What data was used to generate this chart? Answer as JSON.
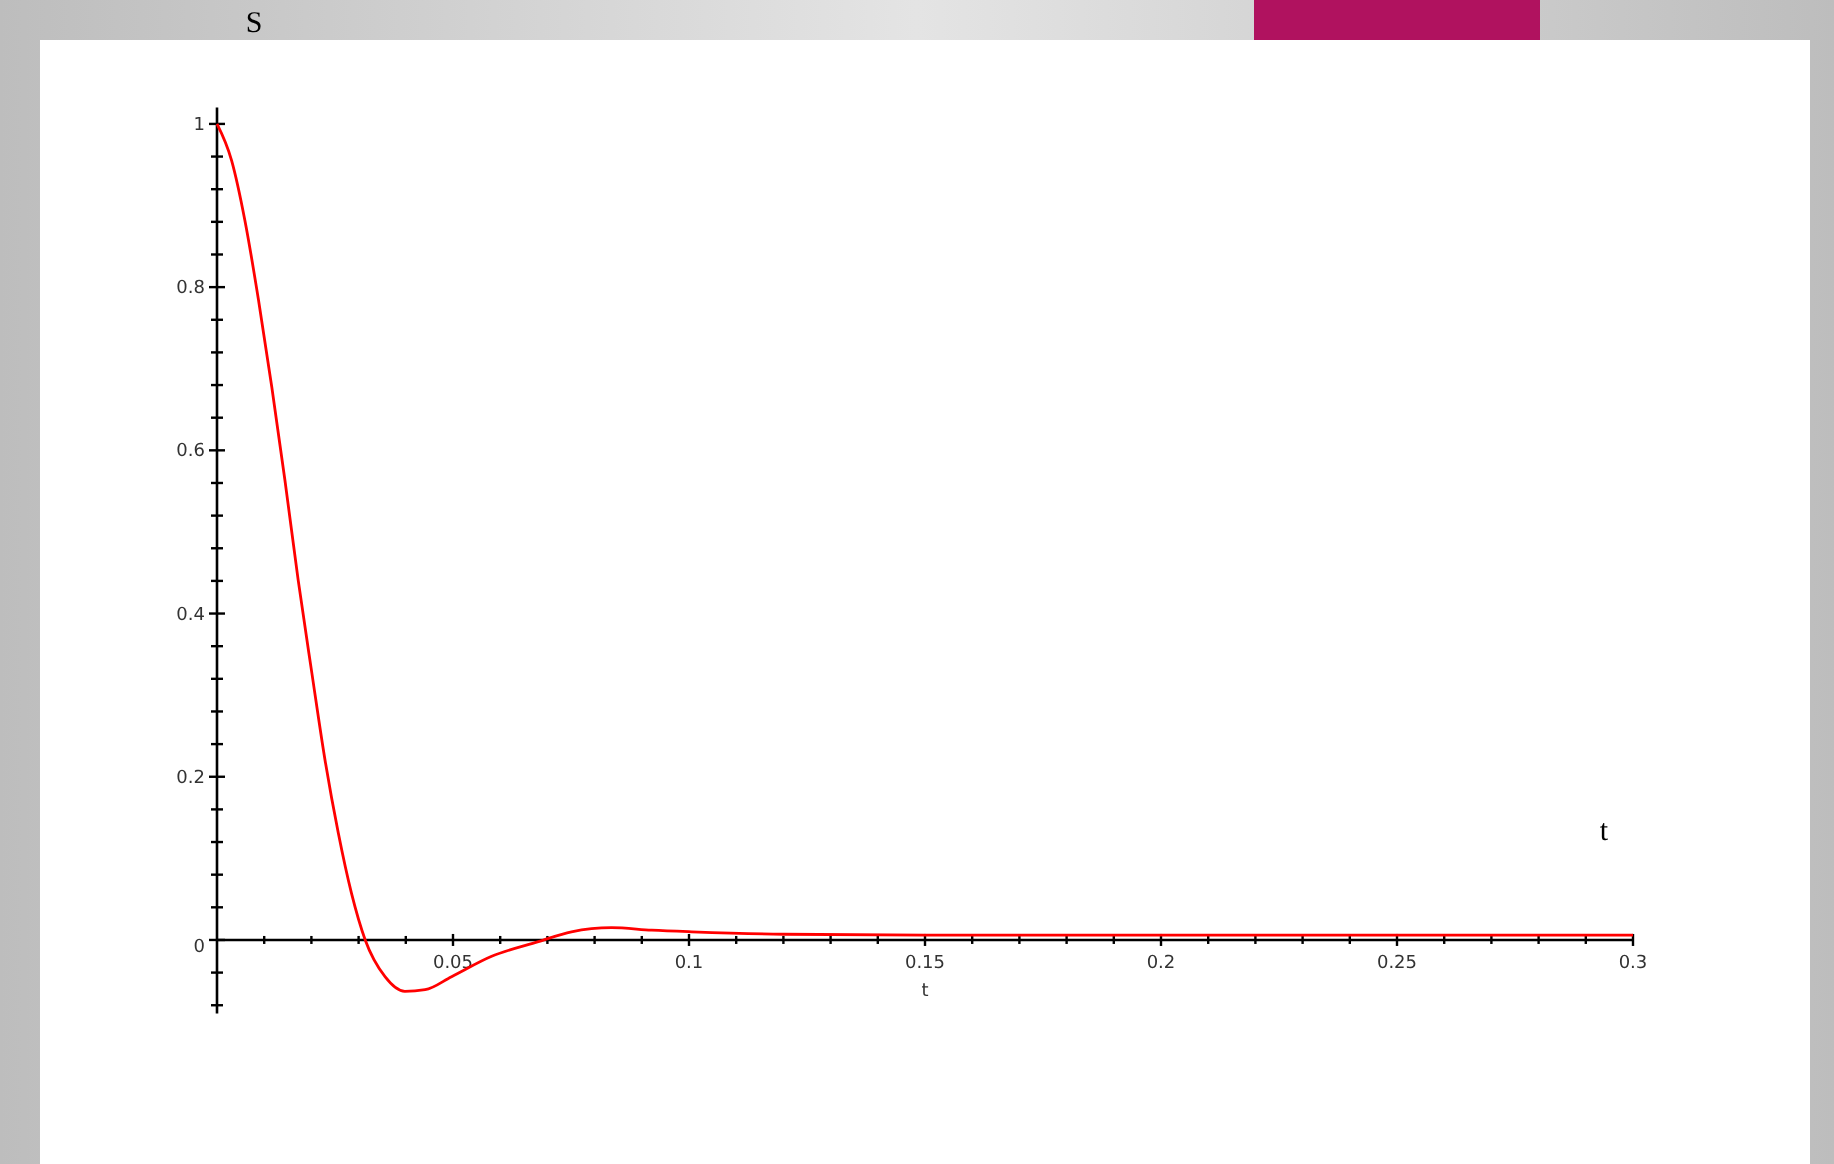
{
  "chart_data": {
    "type": "line",
    "ylabel": "S",
    "xlabel": "t",
    "annotations": [
      "t"
    ],
    "x": [
      0,
      0.0031,
      0.0059,
      0.0088,
      0.0116,
      0.0144,
      0.0172,
      0.0201,
      0.0229,
      0.0257,
      0.0285,
      0.0314,
      0.0356,
      0.0398,
      0.0441,
      0.0497,
      0.0582,
      0.0681,
      0.0751,
      0.0836,
      0.0921,
      0.1006,
      0.12,
      0.15,
      0.2,
      0.25,
      0.3
    ],
    "series": [
      {
        "color": "#ff0000",
        "values": [
          1,
          0.955,
          0.882,
          0.784,
          0.678,
          0.563,
          0.441,
          0.327,
          0.22,
          0.131,
          0.057,
          0,
          -0.045,
          -0.063,
          -0.061,
          -0.045,
          -0.02,
          -0.002,
          0.01,
          0.015,
          0.012,
          0.01,
          0.007,
          0.006,
          0.006,
          0.006,
          0.006
        ]
      }
    ],
    "xlim": [
      0,
      0.3
    ],
    "ylim": [
      -0.09,
      1.02
    ],
    "xticks": [
      {
        "value": 0.01,
        "label": null
      },
      {
        "value": 0.02,
        "label": null
      },
      {
        "value": 0.03,
        "label": null
      },
      {
        "value": 0.04,
        "label": null
      },
      0.05,
      {
        "value": 0.06,
        "label": null
      },
      {
        "value": 0.07,
        "label": null
      },
      {
        "value": 0.08,
        "label": null
      },
      {
        "value": 0.09,
        "label": null
      },
      0.1,
      {
        "value": 0.11,
        "label": null
      },
      {
        "value": 0.12,
        "label": null
      },
      {
        "value": 0.13,
        "label": null
      },
      {
        "value": 0.14,
        "label": null
      },
      0.15,
      {
        "value": 0.16,
        "label": null
      },
      {
        "value": 0.17,
        "label": null
      },
      {
        "value": 0.18,
        "label": null
      },
      {
        "value": 0.19,
        "label": null
      },
      0.2,
      {
        "value": 0.21,
        "label": null
      },
      {
        "value": 0.22,
        "label": null
      },
      {
        "value": 0.23,
        "label": null
      },
      {
        "value": 0.24,
        "label": null
      },
      0.25,
      {
        "value": 0.26,
        "label": null
      },
      {
        "value": 0.27,
        "label": null
      },
      {
        "value": 0.28,
        "label": null
      },
      {
        "value": 0.29,
        "label": null
      },
      0.3
    ],
    "yticks": [
      {
        "value": -0.08,
        "label": null
      },
      {
        "value": -0.04,
        "label": null
      },
      0,
      {
        "value": 0.04,
        "label": null
      },
      {
        "value": 0.08,
        "label": null
      },
      {
        "value": 0.12,
        "label": null
      },
      {
        "value": 0.16,
        "label": null
      },
      0.2,
      {
        "value": 0.24,
        "label": null
      },
      {
        "value": 0.28,
        "label": null
      },
      {
        "value": 0.32,
        "label": null
      },
      {
        "value": 0.36,
        "label": null
      },
      0.4,
      {
        "value": 0.44,
        "label": null
      },
      {
        "value": 0.48,
        "label": null
      },
      {
        "value": 0.52,
        "label": null
      },
      {
        "value": 0.56,
        "label": null
      },
      0.6,
      {
        "value": 0.64,
        "label": null
      },
      {
        "value": 0.68,
        "label": null
      },
      {
        "value": 0.72,
        "label": null
      },
      {
        "value": 0.76,
        "label": null
      },
      0.8,
      {
        "value": 0.84,
        "label": null
      },
      {
        "value": 0.88,
        "label": null
      },
      {
        "value": 0.92,
        "label": null
      },
      {
        "value": 0.96,
        "label": null
      },
      1
    ],
    "marker": "none",
    "line_style": "solid"
  }
}
